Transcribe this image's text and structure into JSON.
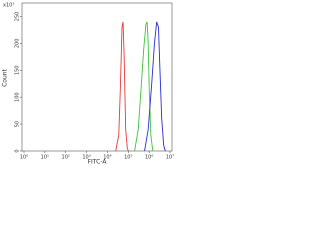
{
  "chart_data": {
    "type": "line",
    "corner_label": "x10¹",
    "x_label": "FITC-A",
    "y_label": "Count",
    "log_x": true,
    "xlim": [
      1,
      10000000
    ],
    "xticks": [
      {
        "value": 1,
        "label": "10⁰"
      },
      {
        "value": 10,
        "label": "10¹"
      },
      {
        "value": 100,
        "label": "10²"
      },
      {
        "value": 1000,
        "label": "10³"
      },
      {
        "value": 10000,
        "label": "10⁴"
      },
      {
        "value": 100000,
        "label": "10⁵"
      },
      {
        "value": 1000000,
        "label": "10⁶"
      },
      {
        "value": 10000000,
        "label": "10⁷"
      }
    ],
    "ylim": [
      0,
      275
    ],
    "yticks": [
      0,
      50,
      100,
      150,
      200,
      250
    ],
    "series": [
      {
        "color": "#e8393a",
        "x": [
          25000,
          35000,
          42000,
          50000,
          56000,
          63000,
          75000,
          90000,
          100000
        ],
        "values": [
          0,
          30,
          120,
          230,
          240,
          180,
          40,
          5,
          0
        ]
      },
      {
        "color": "#3cc43c",
        "x": [
          200000,
          300000,
          400000,
          550000,
          700000,
          800000,
          900000,
          1000000,
          1200000,
          1500000
        ],
        "values": [
          0,
          40,
          110,
          190,
          235,
          240,
          200,
          120,
          30,
          0
        ]
      },
      {
        "color": "#2b2bd6",
        "x": [
          600000,
          900000,
          1300000,
          1800000,
          2300000,
          2800000,
          3300000,
          4000000,
          5000000,
          6000000
        ],
        "values": [
          0,
          40,
          120,
          200,
          240,
          230,
          150,
          60,
          10,
          0
        ]
      }
    ]
  }
}
